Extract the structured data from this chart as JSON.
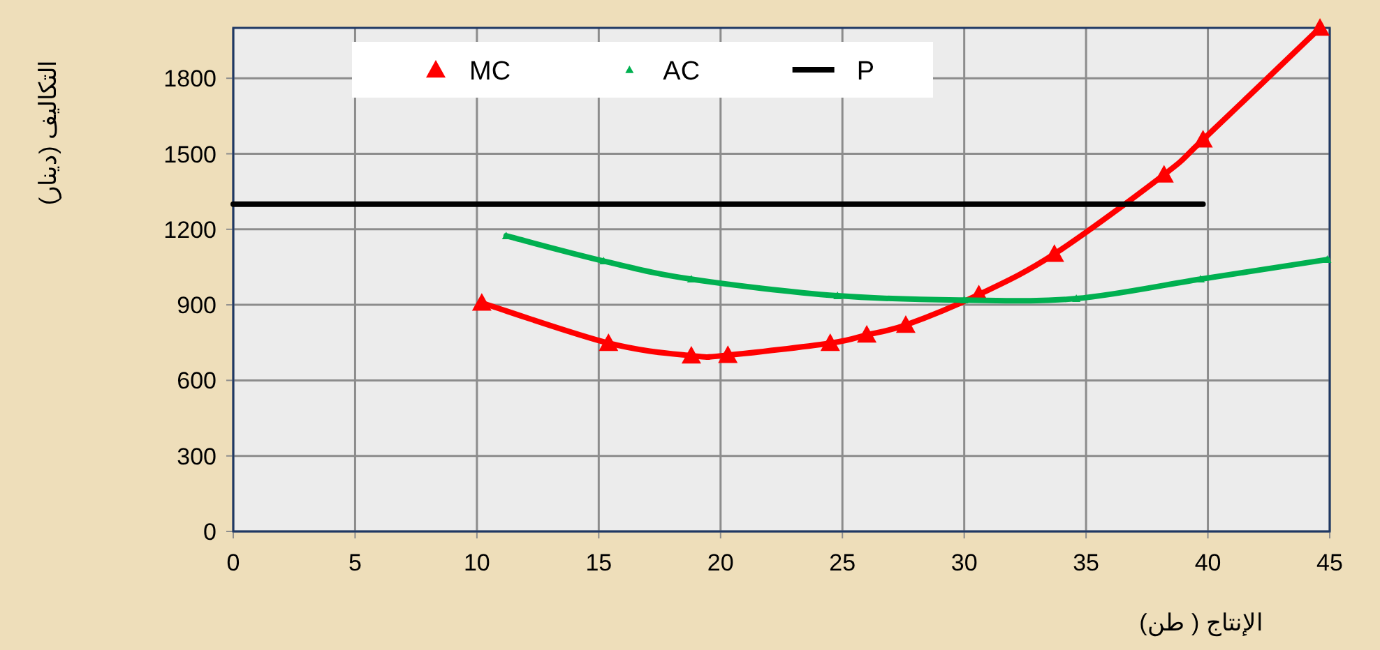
{
  "chart_data": {
    "type": "line",
    "xlabel": "الإنتاج ( طن)",
    "ylabel": "التكاليف (دينار)",
    "xlim": [
      0,
      45
    ],
    "xticks": [
      0,
      5,
      10,
      15,
      20,
      25,
      30,
      35,
      40,
      45
    ],
    "ylim": [
      0,
      2000
    ],
    "yticks": [
      0,
      300,
      600,
      900,
      1200,
      1500,
      1800
    ],
    "grid": true,
    "legend": "top",
    "marker": "triangle",
    "line_style": "solid",
    "series": [
      {
        "name": "MC",
        "color": "#ff0000",
        "x": [
          10.2,
          15.4,
          18.8,
          20.3,
          24.5,
          26.0,
          27.6,
          30.6,
          33.7,
          38.2,
          39.8,
          44.6
        ],
        "values": [
          908,
          748,
          698,
          700,
          748,
          781,
          820,
          941,
          1102,
          1417,
          1556,
          2000
        ]
      },
      {
        "name": "AC",
        "color": "#00b050",
        "x": [
          11.2,
          15.2,
          18.8,
          24.8,
          30.0,
          34.6,
          39.7,
          44.9
        ],
        "values": [
          1174,
          1074,
          1002,
          936,
          919,
          925,
          1002,
          1080
        ]
      },
      {
        "name": "P",
        "color": "#000000",
        "marker": "none",
        "x": [
          0,
          39.8
        ],
        "values": [
          1300,
          1300
        ]
      }
    ]
  }
}
